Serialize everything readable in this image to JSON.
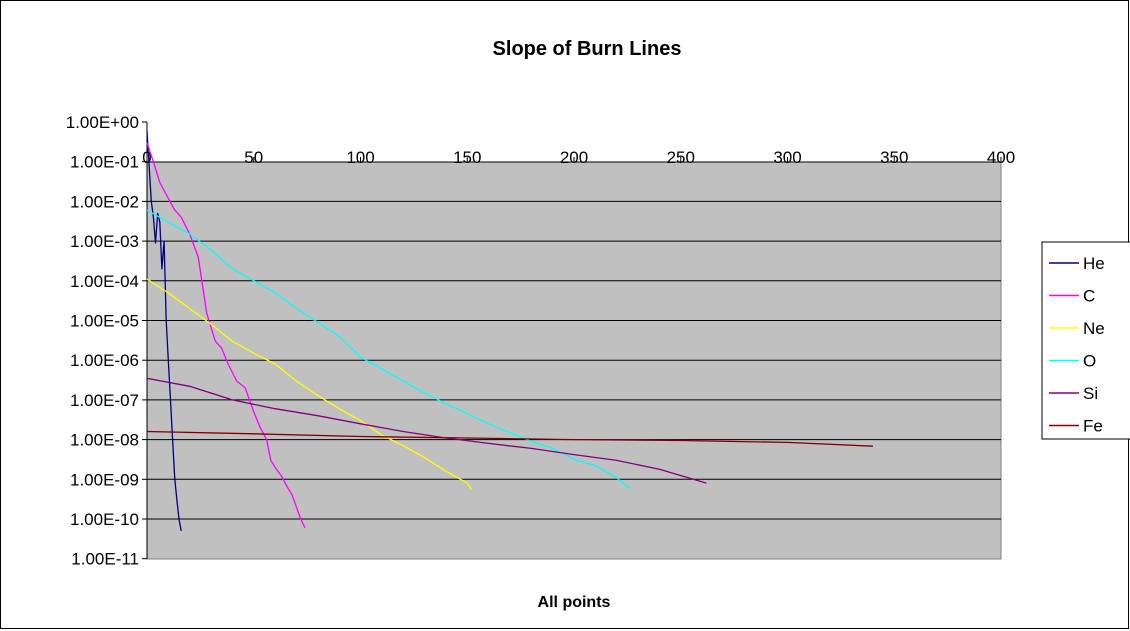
{
  "chart_data": {
    "type": "line",
    "title": "Slope of Burn Lines",
    "xlabel": "All points",
    "ylabel": "",
    "y_scale": "log",
    "xlim": [
      0,
      400
    ],
    "ylim": [
      1e-11,
      1
    ],
    "x_tick_labels": [
      "0",
      "50",
      "100",
      "150",
      "200",
      "250",
      "300",
      "350",
      "400"
    ],
    "y_tick_labels": [
      "1.00E+00",
      "1.00E-01",
      "1.00E-02",
      "1.00E-03",
      "1.00E-04",
      "1.00E-05",
      "1.00E-06",
      "1.00E-07",
      "1.00E-08",
      "1.00E-09",
      "1.00E-10",
      "1.00E-11"
    ],
    "grid": "horizontal major gridlines",
    "plot_background": "#c0c0c0",
    "legend_position": "right",
    "series": [
      {
        "name": "He",
        "color": "#000080",
        "points": [
          [
            0,
            0.6
          ],
          [
            1,
            0.08
          ],
          [
            2,
            0.01
          ],
          [
            3,
            0.004
          ],
          [
            4,
            0.0009
          ],
          [
            5,
            0.005
          ],
          [
            6,
            0.003
          ],
          [
            7,
            0.0002
          ],
          [
            8,
            0.001
          ],
          [
            9,
            1e-05
          ],
          [
            10,
            1e-06
          ],
          [
            11,
            1e-07
          ],
          [
            12,
            1e-08
          ],
          [
            13,
            1e-09
          ],
          [
            14,
            3e-10
          ],
          [
            15,
            1e-10
          ],
          [
            16,
            5e-11
          ]
        ]
      },
      {
        "name": "C",
        "color": "#ff00ff",
        "points": [
          [
            0,
            0.3
          ],
          [
            3,
            0.1
          ],
          [
            6,
            0.03
          ],
          [
            10,
            0.012
          ],
          [
            13,
            0.006
          ],
          [
            16,
            0.004
          ],
          [
            20,
            0.0015
          ],
          [
            24,
            0.0004
          ],
          [
            28,
            1.5e-05
          ],
          [
            32,
            3e-06
          ],
          [
            35,
            2e-06
          ],
          [
            38,
            8e-07
          ],
          [
            42,
            3e-07
          ],
          [
            46,
            2e-07
          ],
          [
            50,
            5e-08
          ],
          [
            53,
            2e-08
          ],
          [
            56,
            1e-08
          ],
          [
            58,
            3e-09
          ],
          [
            60,
            2e-09
          ],
          [
            63,
            1.2e-09
          ],
          [
            66,
            6e-10
          ],
          [
            68,
            4e-10
          ],
          [
            70,
            2e-10
          ],
          [
            72,
            1e-10
          ],
          [
            74,
            6e-11
          ]
        ]
      },
      {
        "name": "Ne",
        "color": "#ffff00",
        "points": [
          [
            0,
            0.00011
          ],
          [
            10,
            5e-05
          ],
          [
            20,
            2e-05
          ],
          [
            30,
            8e-06
          ],
          [
            40,
            3e-06
          ],
          [
            50,
            1.5e-06
          ],
          [
            60,
            8e-07
          ],
          [
            70,
            3e-07
          ],
          [
            80,
            1.3e-07
          ],
          [
            90,
            6e-08
          ],
          [
            100,
            3e-08
          ],
          [
            110,
            1.3e-08
          ],
          [
            120,
            7e-09
          ],
          [
            130,
            3.5e-09
          ],
          [
            140,
            1.6e-09
          ],
          [
            150,
            8e-10
          ],
          [
            152,
            5.5e-10
          ]
        ]
      },
      {
        "name": "O",
        "color": "#00ffff",
        "points": [
          [
            0,
            0.006
          ],
          [
            10,
            0.003
          ],
          [
            20,
            0.0015
          ],
          [
            30,
            0.0006
          ],
          [
            40,
            0.0002
          ],
          [
            50,
            0.0001
          ],
          [
            60,
            5e-05
          ],
          [
            70,
            2e-05
          ],
          [
            80,
            9e-06
          ],
          [
            90,
            4e-06
          ],
          [
            100,
            1.2e-06
          ],
          [
            110,
            6e-07
          ],
          [
            120,
            3e-07
          ],
          [
            130,
            1.5e-07
          ],
          [
            140,
            8e-08
          ],
          [
            150,
            4.5e-08
          ],
          [
            160,
            2.5e-08
          ],
          [
            170,
            1.5e-08
          ],
          [
            180,
            9e-09
          ],
          [
            190,
            6e-09
          ],
          [
            200,
            3.2e-09
          ],
          [
            210,
            2.2e-09
          ],
          [
            220,
            1.1e-09
          ],
          [
            226,
            6e-10
          ]
        ]
      },
      {
        "name": "Si",
        "color": "#800080",
        "points": [
          [
            0,
            3.5e-07
          ],
          [
            20,
            2.2e-07
          ],
          [
            40,
            1e-07
          ],
          [
            60,
            6e-08
          ],
          [
            80,
            4e-08
          ],
          [
            100,
            2.5e-08
          ],
          [
            120,
            1.6e-08
          ],
          [
            140,
            1.1e-08
          ],
          [
            160,
            8e-09
          ],
          [
            180,
            6e-09
          ],
          [
            200,
            4.2e-09
          ],
          [
            220,
            3e-09
          ],
          [
            240,
            1.8e-09
          ],
          [
            262,
            8e-10
          ]
        ]
      },
      {
        "name": "Fe",
        "color": "#800000",
        "points": [
          [
            0,
            1.6e-08
          ],
          [
            50,
            1.4e-08
          ],
          [
            100,
            1.2e-08
          ],
          [
            150,
            1.1e-08
          ],
          [
            200,
            1e-08
          ],
          [
            250,
            9.5e-09
          ],
          [
            300,
            8.5e-09
          ],
          [
            340,
            6.8e-09
          ]
        ]
      }
    ]
  }
}
